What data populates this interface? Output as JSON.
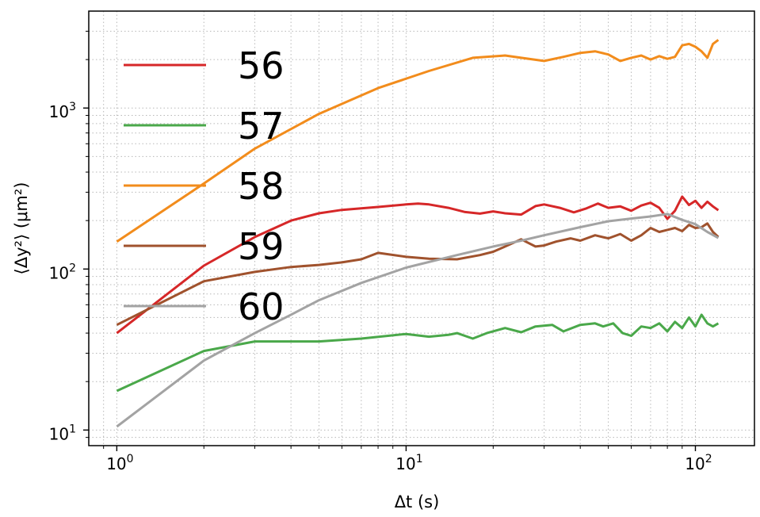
{
  "chart_data": {
    "type": "line",
    "title": "",
    "xlabel": "Δt (s)",
    "ylabel": "⟨Δy²⟩ (μm²)",
    "xscale": "log",
    "yscale": "log",
    "xlim": [
      0.8,
      160
    ],
    "ylim": [
      8,
      4000
    ],
    "grid": "major and minor, dotted",
    "legend": {
      "placement": "upper-left"
    },
    "x_major_ticks": [
      {
        "value": 1,
        "base": "10",
        "exp": "0"
      },
      {
        "value": 10,
        "base": "10",
        "exp": "1"
      },
      {
        "value": 100,
        "base": "10",
        "exp": "2"
      }
    ],
    "y_major_ticks": [
      {
        "value": 10,
        "base": "10",
        "exp": "1"
      },
      {
        "value": 100,
        "base": "10",
        "exp": "2"
      },
      {
        "value": 1000,
        "base": "10",
        "exp": "3"
      }
    ],
    "series": [
      {
        "name": "56",
        "color": "#d62728",
        "points": [
          [
            1,
            40
          ],
          [
            2,
            105
          ],
          [
            3,
            158
          ],
          [
            4,
            200
          ],
          [
            5,
            222
          ],
          [
            6,
            233
          ],
          [
            8,
            243
          ],
          [
            10,
            252
          ],
          [
            11,
            255
          ],
          [
            12,
            252
          ],
          [
            14,
            240
          ],
          [
            16,
            226
          ],
          [
            18,
            221
          ],
          [
            20,
            228
          ],
          [
            22,
            222
          ],
          [
            25,
            218
          ],
          [
            28,
            246
          ],
          [
            30,
            252
          ],
          [
            34,
            240
          ],
          [
            38,
            225
          ],
          [
            42,
            238
          ],
          [
            46,
            255
          ],
          [
            50,
            240
          ],
          [
            55,
            245
          ],
          [
            60,
            230
          ],
          [
            65,
            248
          ],
          [
            70,
            258
          ],
          [
            75,
            240
          ],
          [
            80,
            205
          ],
          [
            85,
            230
          ],
          [
            90,
            282
          ],
          [
            95,
            250
          ],
          [
            100,
            265
          ],
          [
            105,
            240
          ],
          [
            110,
            262
          ],
          [
            115,
            245
          ],
          [
            120,
            232
          ]
        ]
      },
      {
        "name": "57",
        "color": "#4aa84a",
        "points": [
          [
            1,
            17.5
          ],
          [
            2,
            31
          ],
          [
            3,
            35.5
          ],
          [
            5,
            35.5
          ],
          [
            7,
            37
          ],
          [
            10,
            39.5
          ],
          [
            12,
            38
          ],
          [
            14,
            39
          ],
          [
            15,
            40
          ],
          [
            17,
            37
          ],
          [
            19,
            40
          ],
          [
            22,
            43
          ],
          [
            25,
            40.5
          ],
          [
            28,
            44
          ],
          [
            32,
            45
          ],
          [
            35,
            41
          ],
          [
            40,
            45
          ],
          [
            45,
            46
          ],
          [
            48,
            44
          ],
          [
            52,
            46
          ],
          [
            56,
            40
          ],
          [
            60,
            38.5
          ],
          [
            65,
            44
          ],
          [
            70,
            43
          ],
          [
            75,
            46
          ],
          [
            80,
            41
          ],
          [
            85,
            47
          ],
          [
            90,
            43
          ],
          [
            95,
            50
          ],
          [
            100,
            44
          ],
          [
            105,
            52
          ],
          [
            110,
            46
          ],
          [
            115,
            44
          ],
          [
            120,
            46
          ]
        ]
      },
      {
        "name": "58",
        "color": "#f28c1c",
        "points": [
          [
            1,
            148
          ],
          [
            2,
            340
          ],
          [
            3,
            560
          ],
          [
            5,
            920
          ],
          [
            8,
            1330
          ],
          [
            12,
            1700
          ],
          [
            17,
            2050
          ],
          [
            22,
            2120
          ],
          [
            25,
            2050
          ],
          [
            30,
            1960
          ],
          [
            35,
            2080
          ],
          [
            40,
            2200
          ],
          [
            45,
            2250
          ],
          [
            50,
            2150
          ],
          [
            55,
            1960
          ],
          [
            60,
            2050
          ],
          [
            65,
            2120
          ],
          [
            70,
            2000
          ],
          [
            75,
            2100
          ],
          [
            80,
            2020
          ],
          [
            85,
            2080
          ],
          [
            90,
            2450
          ],
          [
            95,
            2500
          ],
          [
            100,
            2400
          ],
          [
            105,
            2250
          ],
          [
            110,
            2050
          ],
          [
            115,
            2500
          ],
          [
            120,
            2650
          ]
        ]
      },
      {
        "name": "59",
        "color": "#a0522d",
        "points": [
          [
            1,
            45
          ],
          [
            2,
            84
          ],
          [
            3,
            96
          ],
          [
            4,
            103
          ],
          [
            5,
            106
          ],
          [
            6,
            110
          ],
          [
            7,
            115
          ],
          [
            8,
            126
          ],
          [
            10,
            119
          ],
          [
            12,
            116
          ],
          [
            15,
            115
          ],
          [
            18,
            122
          ],
          [
            20,
            128
          ],
          [
            22,
            138
          ],
          [
            25,
            153
          ],
          [
            28,
            138
          ],
          [
            30,
            140
          ],
          [
            33,
            148
          ],
          [
            37,
            155
          ],
          [
            40,
            150
          ],
          [
            45,
            162
          ],
          [
            50,
            155
          ],
          [
            55,
            165
          ],
          [
            60,
            150
          ],
          [
            65,
            162
          ],
          [
            70,
            180
          ],
          [
            75,
            170
          ],
          [
            80,
            175
          ],
          [
            85,
            180
          ],
          [
            90,
            172
          ],
          [
            95,
            188
          ],
          [
            100,
            180
          ],
          [
            105,
            182
          ],
          [
            110,
            192
          ],
          [
            115,
            170
          ],
          [
            120,
            158
          ]
        ]
      },
      {
        "name": "60",
        "color": "#a3a3a3",
        "points": [
          [
            1,
            10.5
          ],
          [
            2,
            27
          ],
          [
            3,
            40
          ],
          [
            4,
            52
          ],
          [
            5,
            64
          ],
          [
            7,
            82
          ],
          [
            10,
            102
          ],
          [
            15,
            122
          ],
          [
            20,
            138
          ],
          [
            25,
            150
          ],
          [
            30,
            162
          ],
          [
            40,
            182
          ],
          [
            50,
            198
          ],
          [
            60,
            206
          ],
          [
            70,
            212
          ],
          [
            80,
            220
          ],
          [
            90,
            202
          ],
          [
            100,
            190
          ],
          [
            110,
            170
          ],
          [
            120,
            156
          ]
        ]
      }
    ]
  }
}
